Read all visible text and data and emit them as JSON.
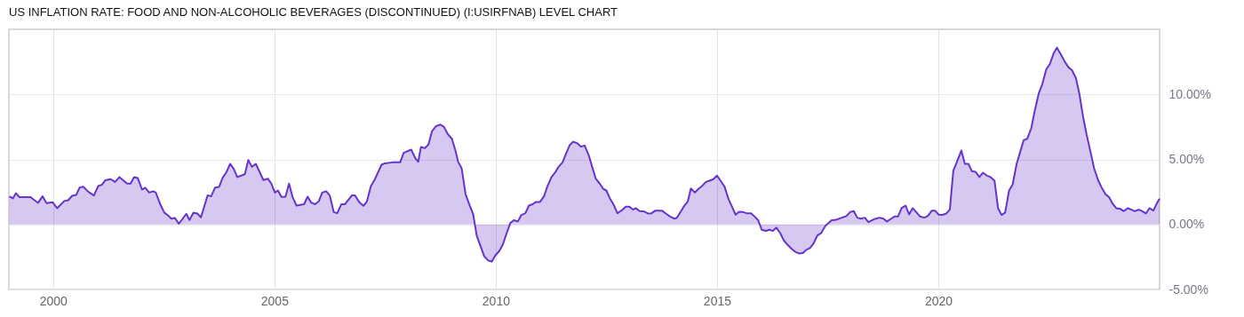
{
  "chart_data": {
    "type": "area",
    "title": "US INFLATION RATE: FOOD AND NON-ALCOHOLIC BEVERAGES (DISCONTINUED) (I:USIRFNAB) LEVEL CHART",
    "x": [
      1999.01,
      1999.09,
      1999.16,
      1999.24,
      1999.49,
      1999.66,
      1999.76,
      1999.85,
      1999.99,
      2000.09,
      2000.25,
      2000.34,
      2000.43,
      2000.52,
      2000.6,
      2000.68,
      2000.8,
      2000.92,
      2001.02,
      2001.1,
      2001.18,
      2001.3,
      2001.4,
      2001.5,
      2001.67,
      2001.75,
      2001.83,
      2001.91,
      2002.01,
      2002.08,
      2002.17,
      2002.26,
      2002.32,
      2002.42,
      2002.51,
      2002.6,
      2002.67,
      2002.75,
      2002.84,
      2003.01,
      2003.08,
      2003.17,
      2003.26,
      2003.34,
      2003.49,
      2003.57,
      2003.66,
      2003.75,
      2003.83,
      2003.91,
      2004.0,
      2004.08,
      2004.16,
      2004.33,
      2004.41,
      2004.49,
      2004.58,
      2004.75,
      2004.85,
      2004.93,
      2005.01,
      2005.08,
      2005.16,
      2005.25,
      2005.33,
      2005.41,
      2005.5,
      2005.67,
      2005.75,
      2005.83,
      2005.92,
      2006.0,
      2006.08,
      2006.17,
      2006.25,
      2006.34,
      2006.42,
      2006.51,
      2006.59,
      2006.75,
      2006.82,
      2006.92,
      2007.01,
      2007.09,
      2007.18,
      2007.26,
      2007.42,
      2007.5,
      2007.66,
      2007.84,
      2007.92,
      2008.09,
      2008.19,
      2008.25,
      2008.31,
      2008.4,
      2008.48,
      2008.56,
      2008.65,
      2008.75,
      2008.83,
      2008.92,
      2009.01,
      2009.09,
      2009.15,
      2009.23,
      2009.32,
      2009.41,
      2009.49,
      2009.57,
      2009.66,
      2009.74,
      2009.83,
      2009.91,
      2009.99,
      2010.08,
      2010.16,
      2010.24,
      2010.33,
      2010.41,
      2010.5,
      2010.58,
      2010.67,
      2010.75,
      2010.83,
      2010.91,
      2011.0,
      2011.09,
      2011.17,
      2011.26,
      2011.34,
      2011.42,
      2011.51,
      2011.59,
      2011.67,
      2011.75,
      2011.84,
      2011.93,
      2012.01,
      2012.1,
      2012.18,
      2012.26,
      2012.35,
      2012.43,
      2012.5,
      2012.58,
      2012.67,
      2012.75,
      2012.85,
      2012.94,
      2013.02,
      2013.1,
      2013.17,
      2013.25,
      2013.35,
      2013.44,
      2013.52,
      2013.6,
      2013.76,
      2013.86,
      2013.94,
      2014.03,
      2014.09,
      2014.18,
      2014.26,
      2014.34,
      2014.41,
      2014.5,
      2014.58,
      2014.66,
      2014.75,
      2014.83,
      2014.92,
      2015.0,
      2015.08,
      2015.17,
      2015.26,
      2015.34,
      2015.42,
      2015.5,
      2015.59,
      2015.67,
      2015.77,
      2015.84,
      2015.93,
      2016.01,
      2016.1,
      2016.18,
      2016.26,
      2016.34,
      2016.43,
      2016.51,
      2016.6,
      2016.68,
      2016.77,
      2016.85,
      2016.94,
      2017.02,
      2017.1,
      2017.18,
      2017.27,
      2017.35,
      2017.45,
      2017.59,
      2017.69,
      2017.82,
      2017.92,
      2018.01,
      2018.09,
      2018.17,
      2018.25,
      2018.34,
      2018.42,
      2018.51,
      2018.59,
      2018.67,
      2018.76,
      2018.84,
      2018.92,
      2019.01,
      2019.09,
      2019.17,
      2019.26,
      2019.34,
      2019.42,
      2019.51,
      2019.59,
      2019.68,
      2019.76,
      2019.85,
      2019.93,
      2020.01,
      2020.09,
      2020.18,
      2020.26,
      2020.34,
      2020.43,
      2020.52,
      2020.6,
      2020.68,
      2020.76,
      2020.84,
      2020.93,
      2021.01,
      2021.1,
      2021.18,
      2021.27,
      2021.35,
      2021.43,
      2021.51,
      2021.6,
      2021.68,
      2021.77,
      2021.85,
      2021.93,
      2022.01,
      2022.1,
      2022.18,
      2022.27,
      2022.35,
      2022.44,
      2022.52,
      2022.61,
      2022.68,
      2022.77,
      2022.86,
      2022.94,
      2023.02,
      2023.11,
      2023.19,
      2023.27,
      2023.35,
      2023.44,
      2023.52,
      2023.61,
      2023.69,
      2023.78,
      2023.86,
      2023.94,
      2024.02,
      2024.11,
      2024.19,
      2024.28,
      2024.36,
      2024.44,
      2024.53,
      2024.61,
      2024.69,
      2024.77,
      2024.86,
      2024.95,
      2025.0
    ],
    "series": [
      {
        "color": "#6633cc",
        "values": [
          2.16,
          2.0,
          2.4,
          2.1,
          2.1,
          1.66,
          2.16,
          1.64,
          1.7,
          1.25,
          1.8,
          1.86,
          2.2,
          2.27,
          2.84,
          2.9,
          2.5,
          2.23,
          2.95,
          3.05,
          3.4,
          3.48,
          3.27,
          3.64,
          3.14,
          3.14,
          3.64,
          3.57,
          2.68,
          2.82,
          2.45,
          2.55,
          2.45,
          1.55,
          0.91,
          0.68,
          0.45,
          0.5,
          0.05,
          0.82,
          0.34,
          0.91,
          0.84,
          0.55,
          2.23,
          2.16,
          2.84,
          2.89,
          3.59,
          3.98,
          4.66,
          4.27,
          3.64,
          3.86,
          4.95,
          4.43,
          4.66,
          3.41,
          3.52,
          3.14,
          2.45,
          2.61,
          2.11,
          2.14,
          3.14,
          2.11,
          1.45,
          1.55,
          2.14,
          1.68,
          1.55,
          1.77,
          2.45,
          2.55,
          2.23,
          0.95,
          0.86,
          1.55,
          1.55,
          2.23,
          2.23,
          1.7,
          1.43,
          1.77,
          2.95,
          3.41,
          4.59,
          4.7,
          4.77,
          4.77,
          5.5,
          5.75,
          5.05,
          4.82,
          5.95,
          5.86,
          6.14,
          7.16,
          7.55,
          7.68,
          7.5,
          6.93,
          6.59,
          5.68,
          4.82,
          4.32,
          2.32,
          1.48,
          0.8,
          -0.86,
          -1.7,
          -2.45,
          -2.77,
          -2.86,
          -2.39,
          -2.05,
          -1.55,
          -0.75,
          0.11,
          0.32,
          0.23,
          0.73,
          0.86,
          1.45,
          1.55,
          1.73,
          1.73,
          2.16,
          2.95,
          3.64,
          3.98,
          4.43,
          4.77,
          5.45,
          6.09,
          6.36,
          6.25,
          5.98,
          6.07,
          5.34,
          4.43,
          3.52,
          3.14,
          2.73,
          2.61,
          2.0,
          1.48,
          0.86,
          1.09,
          1.36,
          1.36,
          1.14,
          1.25,
          1.02,
          1.0,
          0.84,
          0.86,
          1.05,
          1.05,
          0.8,
          0.61,
          0.45,
          0.5,
          0.98,
          1.43,
          1.77,
          2.77,
          2.45,
          2.73,
          2.95,
          3.27,
          3.36,
          3.48,
          3.75,
          3.36,
          2.91,
          1.95,
          1.36,
          0.75,
          0.98,
          0.95,
          0.86,
          0.86,
          0.64,
          0.32,
          -0.41,
          -0.5,
          -0.41,
          -0.5,
          -0.25,
          -0.68,
          -1.23,
          -1.59,
          -1.86,
          -2.11,
          -2.23,
          -2.2,
          -1.95,
          -1.82,
          -1.48,
          -0.84,
          -0.68,
          -0.11,
          0.32,
          0.36,
          0.52,
          0.64,
          0.95,
          1.02,
          0.52,
          0.45,
          0.52,
          0.18,
          0.34,
          0.45,
          0.52,
          0.45,
          0.23,
          0.41,
          0.61,
          0.61,
          1.25,
          1.45,
          0.77,
          1.25,
          0.91,
          0.61,
          0.52,
          0.64,
          1.05,
          1.05,
          0.75,
          0.73,
          0.84,
          1.14,
          4.14,
          4.89,
          5.68,
          4.66,
          4.66,
          4.09,
          4.05,
          3.64,
          3.98,
          3.75,
          3.64,
          3.36,
          1.25,
          0.73,
          0.91,
          2.61,
          3.07,
          4.66,
          5.57,
          6.48,
          6.59,
          7.39,
          8.75,
          10.07,
          10.8,
          11.93,
          12.32,
          13.18,
          13.59,
          13.07,
          12.5,
          12.09,
          11.86,
          11.25,
          10.0,
          8.3,
          6.93,
          5.57,
          4.32,
          3.41,
          2.84,
          2.32,
          2.09,
          1.59,
          1.25,
          1.2,
          1.02,
          1.25,
          1.14,
          1.02,
          1.14,
          1.02,
          0.84,
          1.25,
          1.07,
          1.7,
          1.98
        ]
      }
    ],
    "xlim": [
      1999,
      2025
    ],
    "xticks": [
      2000,
      2005,
      2010,
      2015,
      2020
    ],
    "ylim": [
      -5,
      15
    ],
    "yticks": [
      {
        "value": -5,
        "label": "-5.00%"
      },
      {
        "value": 0,
        "label": "0.00%"
      },
      {
        "value": 5,
        "label": "5.00%"
      },
      {
        "value": 10,
        "label": "10.00%"
      }
    ],
    "grid": true
  }
}
